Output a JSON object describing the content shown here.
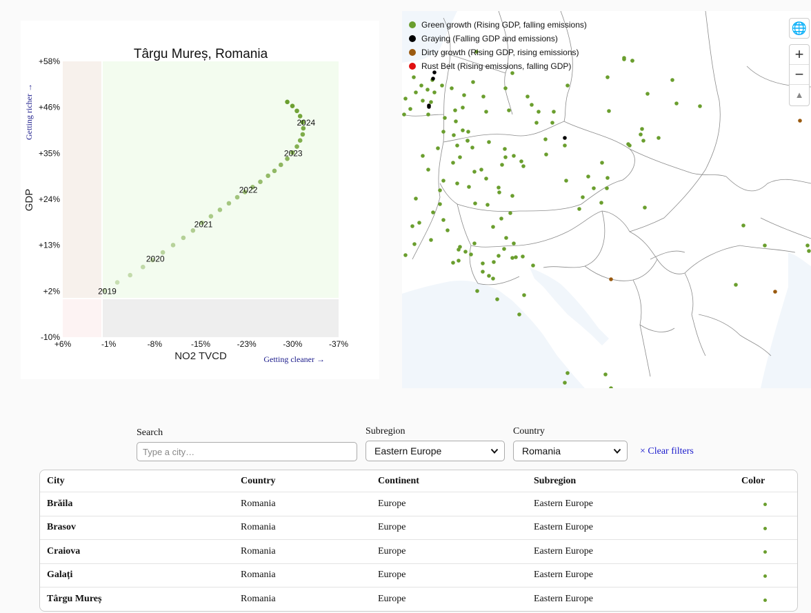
{
  "chart_data": {
    "type": "scatter",
    "title": "Târgu Mureș, Romania",
    "xlabel": "NO2 TVCD",
    "ylabel": "GDP",
    "x_hint": "Getting cleaner →",
    "y_hint": "Getting richer →",
    "xlim": [
      6,
      -37
    ],
    "ylim": [
      -10,
      58
    ],
    "x_ticks": [
      "+6%",
      "-1%",
      "-8%",
      "-15%",
      "-23%",
      "-30%",
      "-37%"
    ],
    "y_ticks": [
      "+58%",
      "+46%",
      "+35%",
      "+24%",
      "+13%",
      "+2%",
      "-10%"
    ],
    "year_labels": [
      {
        "label": "2019",
        "x": -0.5,
        "y": 1.5
      },
      {
        "label": "2020",
        "x": -8.0,
        "y": 9.5
      },
      {
        "label": "2021",
        "x": -15.5,
        "y": 18.0
      },
      {
        "label": "2022",
        "x": -22.5,
        "y": 26.5
      },
      {
        "label": "2023",
        "x": -29.5,
        "y": 35.5
      },
      {
        "label": "2024",
        "x": -31.5,
        "y": 43.0
      }
    ],
    "series": [
      {
        "color": "#6a9e2e",
        "points": [
          {
            "x": -0.5,
            "y": 1.5
          },
          {
            "x": -2.5,
            "y": 3.5
          },
          {
            "x": -4.5,
            "y": 5.3
          },
          {
            "x": -6.5,
            "y": 7.3
          },
          {
            "x": -8.0,
            "y": 9.0
          },
          {
            "x": -9.6,
            "y": 10.9
          },
          {
            "x": -11.2,
            "y": 12.7
          },
          {
            "x": -12.8,
            "y": 14.5
          },
          {
            "x": -14.3,
            "y": 16.3
          },
          {
            "x": -15.7,
            "y": 18.2
          },
          {
            "x": -17.1,
            "y": 19.8
          },
          {
            "x": -18.5,
            "y": 21.4
          },
          {
            "x": -19.9,
            "y": 23.0
          },
          {
            "x": -21.2,
            "y": 24.5
          },
          {
            "x": -22.4,
            "y": 25.8
          },
          {
            "x": -23.6,
            "y": 27.0
          },
          {
            "x": -24.8,
            "y": 28.3
          },
          {
            "x": -26.0,
            "y": 29.8
          },
          {
            "x": -27.0,
            "y": 31.0
          },
          {
            "x": -28.0,
            "y": 32.5
          },
          {
            "x": -29.0,
            "y": 34.0
          },
          {
            "x": -29.8,
            "y": 35.5
          },
          {
            "x": -30.5,
            "y": 37.0
          },
          {
            "x": -31.0,
            "y": 38.5
          },
          {
            "x": -31.4,
            "y": 40.0
          },
          {
            "x": -31.5,
            "y": 41.5
          },
          {
            "x": -31.4,
            "y": 43.0
          },
          {
            "x": -31.0,
            "y": 44.5
          },
          {
            "x": -30.5,
            "y": 45.8
          },
          {
            "x": -29.8,
            "y": 47.0
          },
          {
            "x": -29.0,
            "y": 48.0
          }
        ]
      }
    ]
  },
  "map": {
    "legend": [
      {
        "label": "Green growth (Rising GDP, falling emissions)",
        "color": "#6a9e2e"
      },
      {
        "label": "Graying (Falling GDP and emissions)",
        "color": "#000000"
      },
      {
        "label": "Dirty growth (Rising GDP, rising emissions)",
        "color": "#9a5a10"
      },
      {
        "label": "Rust Belt (Rising emissions, falling GDP)",
        "color": "#e01010"
      }
    ],
    "zoom_in_label": "+",
    "zoom_out_label": "−",
    "compass_label": "▲",
    "globe_label": "🌐"
  },
  "filters": {
    "search_label": "Search",
    "search_placeholder": "Type a city…",
    "search_value": "",
    "subregion_label": "Subregion",
    "subregion_value": "Eastern Europe",
    "country_label": "Country",
    "country_value": "Romania",
    "clear_label": "× Clear filters"
  },
  "table": {
    "headers": {
      "city": "City",
      "country": "Country",
      "continent": "Continent",
      "subregion": "Subregion",
      "color": "Color"
    },
    "rows": [
      {
        "city": "Brăila",
        "country": "Romania",
        "continent": "Europe",
        "subregion": "Eastern Europe",
        "color": "#6a9e2e"
      },
      {
        "city": "Brasov",
        "country": "Romania",
        "continent": "Europe",
        "subregion": "Eastern Europe",
        "color": "#6a9e2e"
      },
      {
        "city": "Craiova",
        "country": "Romania",
        "continent": "Europe",
        "subregion": "Eastern Europe",
        "color": "#6a9e2e"
      },
      {
        "city": "Galați",
        "country": "Romania",
        "continent": "Europe",
        "subregion": "Eastern Europe",
        "color": "#6a9e2e"
      },
      {
        "city": "Târgu Mureș",
        "country": "Romania",
        "continent": "Europe",
        "subregion": "Eastern Europe",
        "color": "#6a9e2e"
      }
    ]
  }
}
